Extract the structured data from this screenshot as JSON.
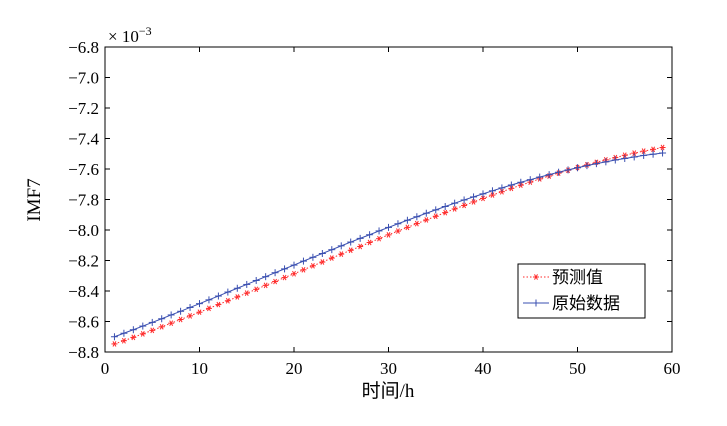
{
  "chart_data": {
    "type": "line",
    "xlabel": "时间/h",
    "ylabel": "IMF7",
    "multiplier": "× 10",
    "multiplier_exp": "−3",
    "xlim": [
      0,
      60
    ],
    "ylim": [
      -8.8,
      -6.8
    ],
    "xticks": [
      0,
      10,
      20,
      30,
      40,
      50,
      60
    ],
    "yticks": [
      -6.8,
      -7.0,
      -7.2,
      -7.4,
      -7.6,
      -7.8,
      -8.0,
      -8.2,
      -8.4,
      -8.6,
      -8.8
    ],
    "xtick_labels": [
      "0",
      "10",
      "20",
      "30",
      "40",
      "50",
      "60"
    ],
    "ytick_labels": [
      "−6.8",
      "−7.0",
      "−7.2",
      "−7.4",
      "−7.6",
      "−7.8",
      "−8.0",
      "−8.2",
      "−8.4",
      "−8.6",
      "−8.8"
    ],
    "legend_position": "lower-right",
    "x": [
      1,
      2,
      3,
      4,
      5,
      6,
      7,
      8,
      9,
      10,
      11,
      12,
      13,
      14,
      15,
      16,
      17,
      18,
      19,
      20,
      21,
      22,
      23,
      24,
      25,
      26,
      27,
      28,
      29,
      30,
      31,
      32,
      33,
      34,
      35,
      36,
      37,
      38,
      39,
      40,
      41,
      42,
      43,
      44,
      45,
      46,
      47,
      48,
      49,
      50,
      51,
      52,
      53,
      54,
      55,
      56,
      57,
      58,
      59
    ],
    "series": [
      {
        "name": "预测值",
        "color": "#ff2a2a",
        "style": "dotted",
        "marker": "*",
        "values": [
          -8.747,
          -8.726,
          -8.704,
          -8.681,
          -8.658,
          -8.635,
          -8.611,
          -8.587,
          -8.563,
          -8.539,
          -8.514,
          -8.489,
          -8.464,
          -8.439,
          -8.414,
          -8.389,
          -8.363,
          -8.338,
          -8.312,
          -8.287,
          -8.261,
          -8.235,
          -8.21,
          -8.184,
          -8.158,
          -8.133,
          -8.108,
          -8.082,
          -8.057,
          -8.032,
          -8.007,
          -7.983,
          -7.958,
          -7.934,
          -7.91,
          -7.886,
          -7.862,
          -7.839,
          -7.816,
          -7.793,
          -7.771,
          -7.749,
          -7.727,
          -7.706,
          -7.686,
          -7.665,
          -7.646,
          -7.627,
          -7.608,
          -7.59,
          -7.573,
          -7.556,
          -7.54,
          -7.525,
          -7.51,
          -7.496,
          -7.483,
          -7.471,
          -7.459
        ]
      },
      {
        "name": "原始数据",
        "color": "#3a4fb0",
        "style": "solid",
        "marker": "+",
        "values": [
          -8.7,
          -8.677,
          -8.654,
          -8.63,
          -8.606,
          -8.582,
          -8.557,
          -8.533,
          -8.508,
          -8.483,
          -8.458,
          -8.433,
          -8.407,
          -8.382,
          -8.357,
          -8.331,
          -8.306,
          -8.28,
          -8.255,
          -8.23,
          -8.204,
          -8.179,
          -8.154,
          -8.129,
          -8.104,
          -8.079,
          -8.055,
          -8.031,
          -8.006,
          -7.983,
          -7.959,
          -7.936,
          -7.913,
          -7.89,
          -7.868,
          -7.846,
          -7.824,
          -7.803,
          -7.783,
          -7.763,
          -7.743,
          -7.724,
          -7.705,
          -7.687,
          -7.67,
          -7.653,
          -7.637,
          -7.621,
          -7.606,
          -7.592,
          -7.578,
          -7.565,
          -7.553,
          -7.541,
          -7.531,
          -7.521,
          -7.511,
          -7.503,
          -7.495
        ]
      }
    ]
  }
}
